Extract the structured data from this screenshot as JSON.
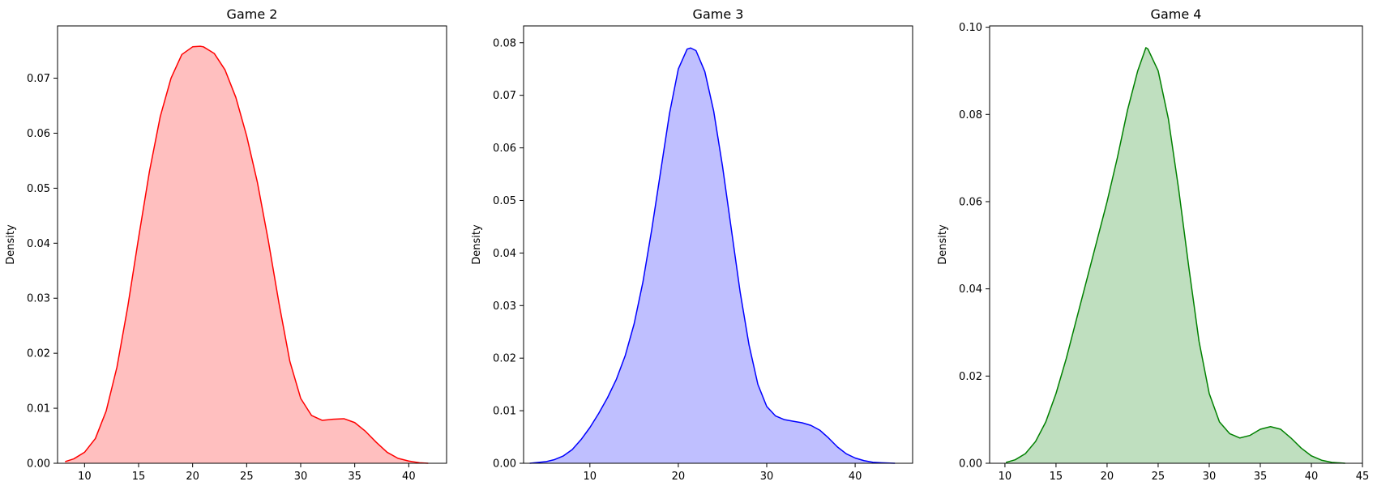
{
  "chart_data": [
    {
      "type": "area",
      "subtype": "kde",
      "title": "Game 2",
      "xlabel": "",
      "ylabel": "Density",
      "xlim": [
        7.5,
        43.5
      ],
      "ylim": [
        0,
        0.0795
      ],
      "xticks": [
        10,
        15,
        20,
        25,
        30,
        35,
        40
      ],
      "yticks": [
        0.0,
        0.01,
        0.02,
        0.03,
        0.04,
        0.05,
        0.06,
        0.07
      ],
      "ytick_decimals": 2,
      "grid": false,
      "color": "#ff0000",
      "fill_color": "#ffbfbf",
      "series": [
        {
          "x": [
            8.2,
            9,
            10,
            11,
            12,
            13,
            14,
            15,
            16,
            17,
            18,
            19,
            20,
            20.7,
            21,
            22,
            23,
            24,
            25,
            26,
            27,
            28,
            29,
            30,
            31,
            32,
            33,
            34,
            35,
            36,
            37,
            38,
            39,
            40,
            41,
            41.8
          ],
          "y": [
            0.0003,
            0.0008,
            0.002,
            0.0045,
            0.0095,
            0.0175,
            0.0285,
            0.041,
            0.053,
            0.063,
            0.07,
            0.0743,
            0.0757,
            0.0758,
            0.0757,
            0.0745,
            0.0715,
            0.0665,
            0.0595,
            0.051,
            0.0405,
            0.029,
            0.0185,
            0.0118,
            0.0087,
            0.0078,
            0.008,
            0.0081,
            0.0074,
            0.0058,
            0.0038,
            0.002,
            0.0009,
            0.0004,
            0.0001,
            0.0
          ]
        }
      ]
    },
    {
      "type": "area",
      "subtype": "kde",
      "title": "Game 3",
      "xlabel": "",
      "ylabel": "Density",
      "xlim": [
        2.5,
        46.5
      ],
      "ylim": [
        0,
        0.0832
      ],
      "xticks": [
        10,
        20,
        30,
        40
      ],
      "yticks": [
        0.0,
        0.01,
        0.02,
        0.03,
        0.04,
        0.05,
        0.06,
        0.07,
        0.08
      ],
      "ytick_decimals": 2,
      "grid": false,
      "color": "#0000ff",
      "fill_color": "#bfbfff",
      "series": [
        {
          "x": [
            3.2,
            5,
            6,
            7,
            8,
            9,
            10,
            11,
            12,
            13,
            14,
            15,
            16,
            17,
            18,
            19,
            20,
            21,
            21.4,
            22,
            23,
            24,
            25,
            26,
            27,
            28,
            29,
            30,
            31,
            32,
            33,
            34,
            35,
            36,
            37,
            38,
            39,
            40,
            41,
            42,
            43,
            44.5
          ],
          "y": [
            0.0,
            0.0003,
            0.0007,
            0.0014,
            0.0026,
            0.0045,
            0.0068,
            0.0095,
            0.0125,
            0.016,
            0.0205,
            0.0265,
            0.0345,
            0.0445,
            0.0555,
            0.0665,
            0.075,
            0.0788,
            0.079,
            0.0785,
            0.0745,
            0.067,
            0.0565,
            0.0445,
            0.0325,
            0.0225,
            0.015,
            0.0108,
            0.009,
            0.0083,
            0.008,
            0.0077,
            0.0072,
            0.0063,
            0.0048,
            0.0031,
            0.0018,
            0.001,
            0.0005,
            0.0002,
            0.0001,
            0.0
          ]
        }
      ]
    },
    {
      "type": "area",
      "subtype": "kde",
      "title": "Game 4",
      "xlabel": "",
      "ylabel": "Density",
      "xlim": [
        8.5,
        45
      ],
      "ylim": [
        0,
        0.1003
      ],
      "xticks": [
        10,
        15,
        20,
        25,
        30,
        35,
        40,
        45
      ],
      "yticks": [
        0.0,
        0.02,
        0.04,
        0.06,
        0.08,
        0.1
      ],
      "ytick_decimals": 2,
      "grid": false,
      "color": "#008000",
      "fill_color": "#bfdfbf",
      "series": [
        {
          "x": [
            10.1,
            11,
            12,
            13,
            14,
            15,
            16,
            17,
            18,
            19,
            20,
            21,
            22,
            23,
            23.8,
            24,
            25,
            26,
            27,
            28,
            29,
            30,
            31,
            32,
            33,
            34,
            35,
            36,
            37,
            38,
            39,
            40,
            41,
            42,
            43.3
          ],
          "y": [
            0.0002,
            0.0008,
            0.0022,
            0.005,
            0.0095,
            0.016,
            0.024,
            0.033,
            0.042,
            0.051,
            0.06,
            0.07,
            0.081,
            0.09,
            0.0953,
            0.095,
            0.09,
            0.079,
            0.063,
            0.045,
            0.028,
            0.016,
            0.0095,
            0.0068,
            0.0058,
            0.0064,
            0.0078,
            0.0084,
            0.0078,
            0.0058,
            0.0035,
            0.0017,
            0.0007,
            0.0002,
            0.0
          ]
        }
      ]
    }
  ]
}
